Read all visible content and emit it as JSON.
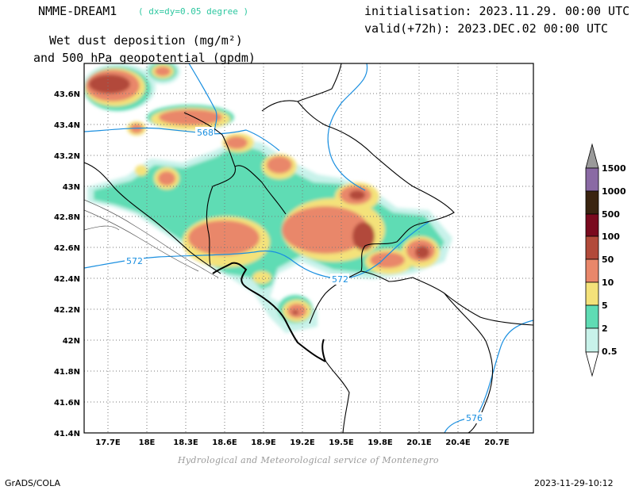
{
  "header": {
    "model": "NMME-DREAM1",
    "resolution": "( dx=dy=0.05 degree )",
    "variable_line1": "Wet dust deposition (mg/m²)",
    "variable_line2": "and 500 hPa geopotential (gpdm)",
    "initialisation": "initialisation: 2023.11.29. 00:00 UTC",
    "valid": "valid(+72h): 2023.DEC.02 00:00 UTC"
  },
  "footer": {
    "source": "Hydrological and Meteorological service of Montenegro",
    "software": "GrADS/COLA",
    "timestamp": "2023-11-29-10:12"
  },
  "map": {
    "lat_labels": [
      "43.6N",
      "43.4N",
      "43.2N",
      "43N",
      "42.8N",
      "42.6N",
      "42.4N",
      "42.2N",
      "42N",
      "41.8N",
      "41.6N",
      "41.4N"
    ],
    "lon_labels": [
      "17.7E",
      "18E",
      "18.3E",
      "18.6E",
      "18.9E",
      "19.2E",
      "19.5E",
      "19.8E",
      "20.1E",
      "20.4E",
      "20.7E"
    ],
    "lat_range": [
      41.4,
      43.75
    ],
    "lon_range": [
      17.5,
      20.9
    ],
    "geopotential_labels": [
      "568",
      "572",
      "572",
      "576"
    ],
    "contour_color": "#1a8fe0"
  },
  "colorbar": {
    "levels": [
      "1500",
      "1000",
      "500",
      "100",
      "50",
      "10",
      "5",
      "2",
      "0.5"
    ],
    "colors": [
      "#9a9a9a",
      "#8a6aa4",
      "#3a2410",
      "#7a0a1e",
      "#b24a3a",
      "#e9876a",
      "#f4e27a",
      "#5fdcb4",
      "#c8f2ea"
    ]
  }
}
